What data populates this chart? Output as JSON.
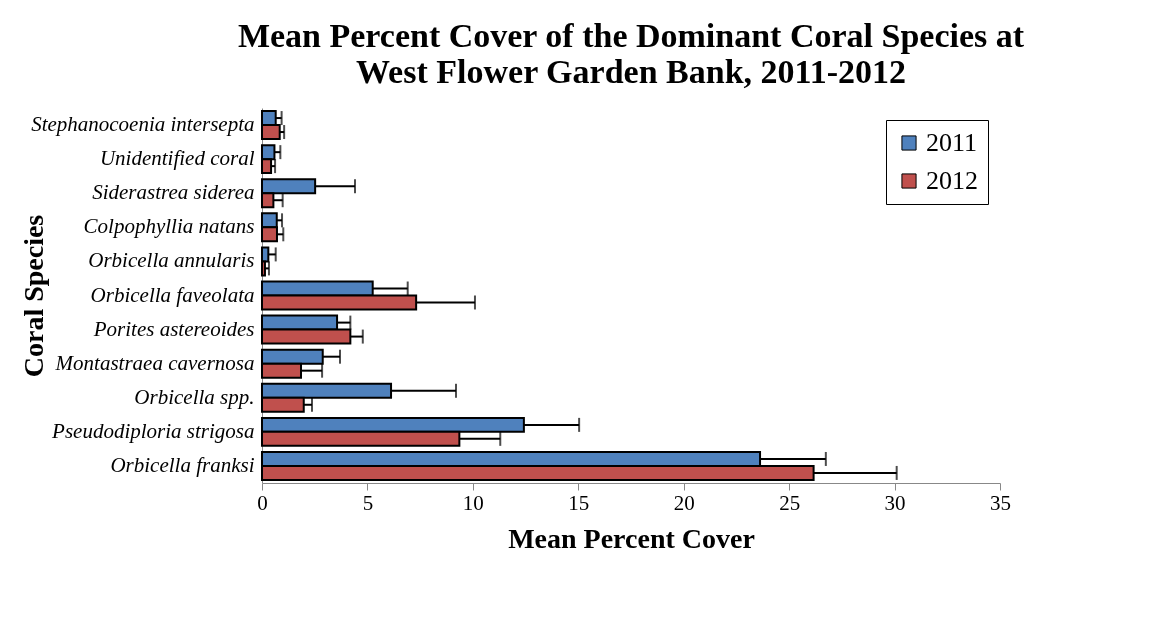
{
  "chart_data": {
    "type": "bar",
    "orientation": "horizontal",
    "title": "Mean Percent Cover of the Dominant Coral Species at\nWest Flower Garden Bank, 2011-2012",
    "xlabel": "Mean Percent Cover",
    "ylabel": "Coral Species",
    "categories": [
      "Stephanocoenia intersepta",
      "Unidentified coral",
      "Siderastrea siderea",
      "Colpophyllia natans",
      "Orbicella annularis",
      "Orbicella faveolata",
      "Porites astereoides",
      "Montastraea cavernosa",
      "Orbicella spp.",
      "Pseudodiploria strigosa",
      "Orbicella franksi"
    ],
    "series": [
      {
        "name": "2011",
        "color": "#4f81bd",
        "values": [
          0.65,
          0.59,
          2.52,
          0.7,
          0.3,
          5.25,
          3.56,
          2.88,
          6.12,
          12.42,
          23.62
        ],
        "errors": [
          [
            0.65,
            0.93
          ],
          [
            0.59,
            0.87
          ],
          [
            2.52,
            4.41
          ],
          [
            0.7,
            0.95
          ],
          [
            0.3,
            0.65
          ],
          [
            5.25,
            6.91
          ],
          [
            3.56,
            4.19
          ],
          [
            2.88,
            3.7
          ],
          [
            6.12,
            9.2
          ],
          [
            12.42,
            15.04
          ],
          [
            23.62,
            26.74
          ]
        ]
      },
      {
        "name": "2012",
        "color": "#c0504d",
        "values": [
          0.84,
          0.43,
          0.54,
          0.71,
          0.14,
          7.31,
          4.19,
          1.85,
          1.98,
          9.36,
          26.16
        ],
        "errors": [
          [
            0.84,
            1.05
          ],
          [
            0.43,
            0.62
          ],
          [
            0.54,
            0.98
          ],
          [
            0.71,
            1.01
          ],
          [
            0.14,
            0.33
          ],
          [
            7.31,
            10.1
          ],
          [
            4.19,
            4.78
          ],
          [
            1.85,
            2.85
          ],
          [
            1.98,
            2.37
          ],
          [
            9.36,
            11.3
          ],
          [
            26.16,
            30.1
          ]
        ]
      }
    ],
    "xlim": [
      0,
      35
    ],
    "xticks": [
      0,
      5,
      10,
      15,
      20,
      25,
      30,
      35
    ],
    "grid": false,
    "legend": "top right"
  }
}
